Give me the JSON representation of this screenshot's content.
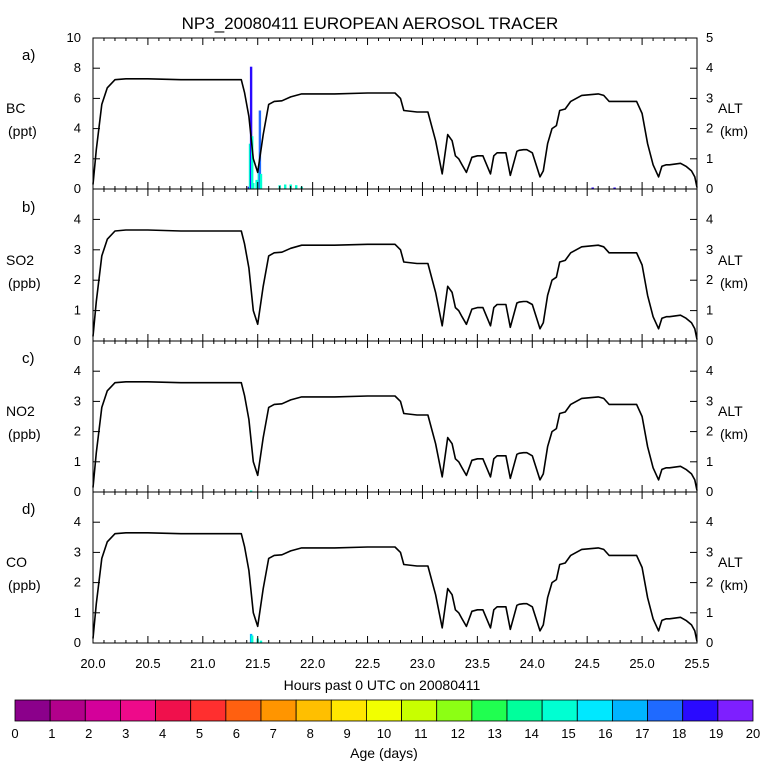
{
  "chart_data": {
    "type": "line",
    "title": "NP3_20080411 EUROPEAN AEROSOL TRACER",
    "xlabel": "Hours past 0 UTC on 20080411",
    "xlim": [
      20.0,
      25.5
    ],
    "xticks": [
      "20.0",
      "20.5",
      "21.0",
      "21.5",
      "22.0",
      "22.5",
      "23.0",
      "23.5",
      "24.0",
      "24.5",
      "25.0",
      "25.5"
    ],
    "altitude_km": {
      "x": [
        20.0,
        20.03,
        20.08,
        20.13,
        20.2,
        20.3,
        20.5,
        20.8,
        21.0,
        21.2,
        21.35,
        21.38,
        21.42,
        21.46,
        21.5,
        21.55,
        21.6,
        21.65,
        21.72,
        21.8,
        21.9,
        22.0,
        22.2,
        22.5,
        22.75,
        22.8,
        22.83,
        22.95,
        23.05,
        23.12,
        23.18,
        23.23,
        23.27,
        23.3,
        23.33,
        23.36,
        23.4,
        23.45,
        23.5,
        23.55,
        23.62,
        23.65,
        23.68,
        23.72,
        23.76,
        23.8,
        23.86,
        23.88,
        23.92,
        23.95,
        24.0,
        24.07,
        24.1,
        24.14,
        24.18,
        24.22,
        24.25,
        24.3,
        24.35,
        24.45,
        24.6,
        24.65,
        24.7,
        24.8,
        24.95,
        25.0,
        25.05,
        25.1,
        25.15,
        25.18,
        25.22,
        25.25,
        25.35,
        25.4,
        25.45,
        25.48,
        25.5
      ],
      "y": [
        0.15,
        1.3,
        2.8,
        3.35,
        3.62,
        3.65,
        3.65,
        3.62,
        3.62,
        3.62,
        3.62,
        3.2,
        2.4,
        1.0,
        0.55,
        1.8,
        2.8,
        2.9,
        2.92,
        3.05,
        3.15,
        3.15,
        3.15,
        3.18,
        3.18,
        3.0,
        2.6,
        2.55,
        2.55,
        1.6,
        0.5,
        1.8,
        1.6,
        1.1,
        1.0,
        0.8,
        0.55,
        1.05,
        1.1,
        1.1,
        0.5,
        1.1,
        1.2,
        1.2,
        1.2,
        0.45,
        1.25,
        1.28,
        1.3,
        1.3,
        1.2,
        0.4,
        0.6,
        1.5,
        2.0,
        2.1,
        2.6,
        2.65,
        2.9,
        3.1,
        3.15,
        3.1,
        2.9,
        2.9,
        2.9,
        2.5,
        1.5,
        0.8,
        0.4,
        0.75,
        0.8,
        0.8,
        0.85,
        0.75,
        0.6,
        0.4,
        0.05
      ]
    },
    "panels": [
      {
        "label": "a)",
        "species": "BC",
        "units": "(ppt)",
        "ylim": [
          0,
          10
        ],
        "yticks": [
          "0",
          "2",
          "4",
          "6",
          "8",
          "10"
        ],
        "alt_label": "ALT",
        "alt_units": "(km)",
        "alt_ylim": [
          0,
          5
        ],
        "alt_ticks": [
          "0",
          "1",
          "2",
          "3",
          "4",
          "5"
        ],
        "tracer": [
          {
            "x": 21.42,
            "value": 0.15,
            "age_days": 19
          },
          {
            "x": 21.43,
            "value": 3.0,
            "age_days": 15
          },
          {
            "x": 21.44,
            "value": 8.1,
            "age_days": 19
          },
          {
            "x": 21.45,
            "value": 3.5,
            "age_days": 15
          },
          {
            "x": 21.46,
            "value": 0.4,
            "age_days": 15
          },
          {
            "x": 21.49,
            "value": 0.6,
            "age_days": 15
          },
          {
            "x": 21.5,
            "value": 0.35,
            "age_days": 15
          },
          {
            "x": 21.51,
            "value": 1.5,
            "age_days": 15
          },
          {
            "x": 21.52,
            "value": 5.2,
            "age_days": 18
          },
          {
            "x": 21.53,
            "value": 1.0,
            "age_days": 15
          },
          {
            "x": 21.7,
            "value": 0.25,
            "age_days": 15
          },
          {
            "x": 21.75,
            "value": 0.3,
            "age_days": 15
          },
          {
            "x": 21.8,
            "value": 0.3,
            "age_days": 15
          },
          {
            "x": 21.85,
            "value": 0.25,
            "age_days": 15
          },
          {
            "x": 21.9,
            "value": 0.15,
            "age_days": 15
          },
          {
            "x": 24.55,
            "value": 0.1,
            "age_days": 19
          },
          {
            "x": 24.75,
            "value": 0.1,
            "age_days": 19
          }
        ]
      },
      {
        "label": "b)",
        "species": "SO2",
        "units": "(ppb)",
        "ylim": [
          0,
          5
        ],
        "yticks": [
          "0",
          "1",
          "2",
          "3",
          "4"
        ],
        "alt_label": "ALT",
        "alt_units": "(km)",
        "alt_ylim": [
          0,
          5
        ],
        "alt_ticks": [
          "0",
          "1",
          "2",
          "3",
          "4"
        ],
        "tracer": []
      },
      {
        "label": "c)",
        "species": "NO2",
        "units": "(ppb)",
        "ylim": [
          0,
          5
        ],
        "yticks": [
          "0",
          "1",
          "2",
          "3",
          "4"
        ],
        "alt_label": "ALT",
        "alt_units": "(km)",
        "alt_ylim": [
          0,
          5
        ],
        "alt_ticks": [
          "0",
          "1",
          "2",
          "3",
          "4"
        ],
        "tracer": [
          {
            "x": 21.44,
            "value": 0.05,
            "age_days": 15
          }
        ]
      },
      {
        "label": "d)",
        "species": "CO",
        "units": "(ppb)",
        "ylim": [
          0,
          5
        ],
        "yticks": [
          "0",
          "1",
          "2",
          "3",
          "4"
        ],
        "alt_label": "ALT",
        "alt_units": "(km)",
        "alt_ylim": [
          0,
          5
        ],
        "alt_ticks": [
          "0",
          "1",
          "2",
          "3",
          "4"
        ],
        "tracer": [
          {
            "x": 21.44,
            "value": 0.3,
            "age_days": 17
          },
          {
            "x": 21.45,
            "value": 0.25,
            "age_days": 15
          },
          {
            "x": 21.5,
            "value": 0.15,
            "age_days": 15
          },
          {
            "x": 21.53,
            "value": 0.08,
            "age_days": 15
          }
        ]
      }
    ],
    "colorbar": {
      "label": "Age (days)",
      "ticks": [
        "0",
        "1",
        "2",
        "3",
        "4",
        "5",
        "6",
        "7",
        "8",
        "9",
        "10",
        "11",
        "12",
        "13",
        "14",
        "15",
        "16",
        "17",
        "18",
        "19",
        "20"
      ],
      "colors": [
        "#8b008b",
        "#b2008b",
        "#d4009a",
        "#ee0a8a",
        "#f0104c",
        "#ff2f2f",
        "#ff6010",
        "#ff9500",
        "#ffbf00",
        "#ffe600",
        "#f2ff00",
        "#c8ff00",
        "#8cff14",
        "#20ff50",
        "#00ff9c",
        "#00ffd2",
        "#00e8ff",
        "#00b4ff",
        "#1f6aff",
        "#2a0aff",
        "#7e1fff"
      ]
    }
  }
}
